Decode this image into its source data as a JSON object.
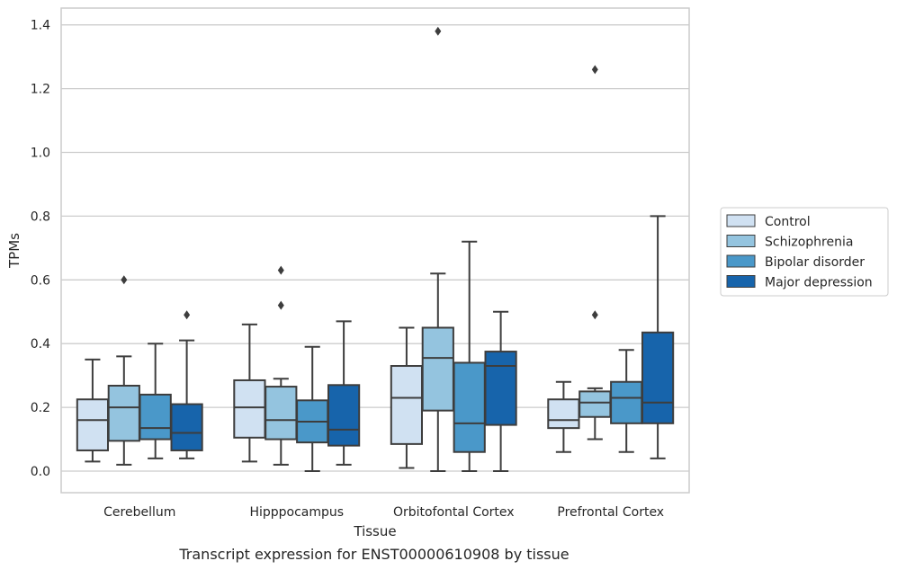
{
  "chart_data": {
    "type": "box",
    "title": "",
    "caption": "Transcript expression for ENST00000610908 by tissue",
    "xlabel": "Tissue",
    "ylabel": "TPMs",
    "ylim": [
      -0.065,
      1.45
    ],
    "yticks": [
      0.0,
      0.2,
      0.4,
      0.6,
      0.8,
      1.0,
      1.2,
      1.4
    ],
    "ytick_labels": [
      "0.0",
      "0.2",
      "0.4",
      "0.6",
      "0.8",
      "1.0",
      "1.2",
      "1.4"
    ],
    "grid": "horizontal",
    "legend_placement": "right",
    "categories": [
      "Cerebellum",
      "Hipppocampus",
      "Orbitofontal Cortex",
      "Prefrontal Cortex"
    ],
    "series": [
      {
        "name": "Control",
        "color": "#d0e1f2",
        "boxes": [
          {
            "whisker_low": 0.03,
            "q1": 0.065,
            "median": 0.16,
            "q3": 0.225,
            "whisker_high": 0.35,
            "outliers": []
          },
          {
            "whisker_low": 0.03,
            "q1": 0.105,
            "median": 0.2,
            "q3": 0.285,
            "whisker_high": 0.46,
            "outliers": []
          },
          {
            "whisker_low": 0.01,
            "q1": 0.085,
            "median": 0.23,
            "q3": 0.33,
            "whisker_high": 0.45,
            "outliers": []
          },
          {
            "whisker_low": 0.06,
            "q1": 0.135,
            "median": 0.16,
            "q3": 0.225,
            "whisker_high": 0.28,
            "outliers": []
          }
        ]
      },
      {
        "name": "Schizophrenia",
        "color": "#94c4df",
        "boxes": [
          {
            "whisker_low": 0.02,
            "q1": 0.095,
            "median": 0.2,
            "q3": 0.268,
            "whisker_high": 0.36,
            "outliers": [
              0.6
            ]
          },
          {
            "whisker_low": 0.02,
            "q1": 0.1,
            "median": 0.16,
            "q3": 0.265,
            "whisker_high": 0.29,
            "outliers": [
              0.52,
              0.63
            ]
          },
          {
            "whisker_low": 0.0,
            "q1": 0.19,
            "median": 0.355,
            "q3": 0.45,
            "whisker_high": 0.62,
            "outliers": [
              1.38
            ]
          },
          {
            "whisker_low": 0.1,
            "q1": 0.17,
            "median": 0.215,
            "q3": 0.25,
            "whisker_high": 0.26,
            "outliers": [
              0.49,
              1.26
            ]
          }
        ]
      },
      {
        "name": "Bipolar disorder",
        "color": "#4a98c9",
        "boxes": [
          {
            "whisker_low": 0.04,
            "q1": 0.1,
            "median": 0.135,
            "q3": 0.24,
            "whisker_high": 0.4,
            "outliers": []
          },
          {
            "whisker_low": 0.0,
            "q1": 0.09,
            "median": 0.155,
            "q3": 0.222,
            "whisker_high": 0.39,
            "outliers": []
          },
          {
            "whisker_low": 0.0,
            "q1": 0.06,
            "median": 0.15,
            "q3": 0.34,
            "whisker_high": 0.72,
            "outliers": []
          },
          {
            "whisker_low": 0.06,
            "q1": 0.15,
            "median": 0.23,
            "q3": 0.28,
            "whisker_high": 0.38,
            "outliers": []
          }
        ]
      },
      {
        "name": "Major depression",
        "color": "#1764ab",
        "boxes": [
          {
            "whisker_low": 0.04,
            "q1": 0.065,
            "median": 0.12,
            "q3": 0.21,
            "whisker_high": 0.41,
            "outliers": [
              0.49
            ]
          },
          {
            "whisker_low": 0.02,
            "q1": 0.08,
            "median": 0.13,
            "q3": 0.27,
            "whisker_high": 0.47,
            "outliers": []
          },
          {
            "whisker_low": 0.0,
            "q1": 0.145,
            "median": 0.33,
            "q3": 0.375,
            "whisker_high": 0.5,
            "outliers": []
          },
          {
            "whisker_low": 0.04,
            "q1": 0.15,
            "median": 0.215,
            "q3": 0.435,
            "whisker_high": 0.8,
            "outliers": []
          }
        ]
      }
    ],
    "colors": {
      "box_edge": "#3d3d3d",
      "grid": "#cccccc",
      "frame": "#cccccc",
      "text": "#262626"
    }
  }
}
